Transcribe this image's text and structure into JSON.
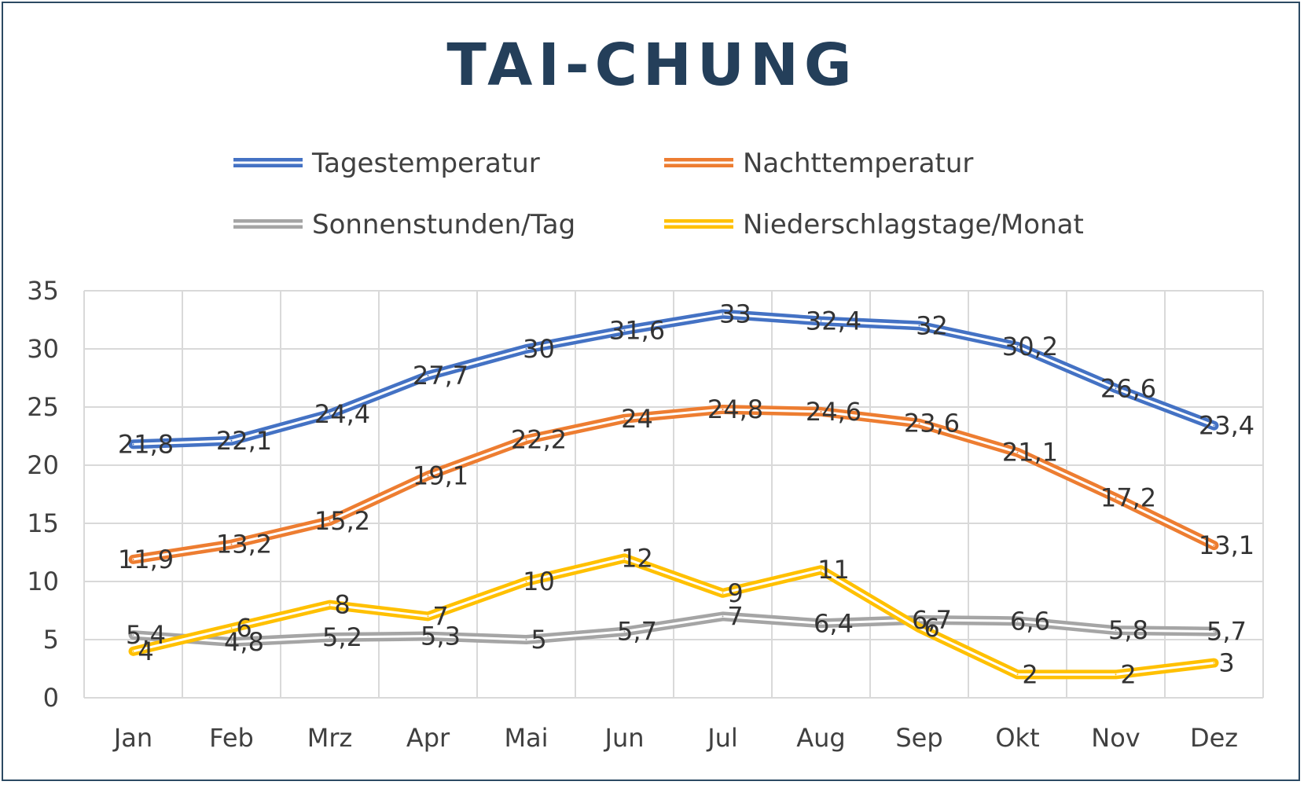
{
  "chart_data": {
    "type": "line",
    "title": "TAI-CHUNG",
    "categories": [
      "Jan",
      "Feb",
      "Mrz",
      "Apr",
      "Mai",
      "Jun",
      "Jul",
      "Aug",
      "Sep",
      "Okt",
      "Nov",
      "Dez"
    ],
    "ylim": [
      0,
      35
    ],
    "yticks": [
      "0",
      "5",
      "10",
      "15",
      "20",
      "25",
      "30",
      "35"
    ],
    "grid": true,
    "legend_position": "top",
    "series": [
      {
        "name": "Tagestemperatur",
        "color": "#4472c4",
        "values": [
          21.8,
          22.1,
          24.4,
          27.7,
          30,
          31.6,
          33,
          32.4,
          32,
          30.2,
          26.6,
          23.4
        ],
        "labels": [
          "21,8",
          "22,1",
          "24,4",
          "27,7",
          "30",
          "31,6",
          "33",
          "32,4",
          "32",
          "30,2",
          "26,6",
          "23,4"
        ]
      },
      {
        "name": "Nachttemperatur",
        "color": "#ed7d31",
        "values": [
          11.9,
          13.2,
          15.2,
          19.1,
          22.2,
          24,
          24.8,
          24.6,
          23.6,
          21.1,
          17.2,
          13.1
        ],
        "labels": [
          "11,9",
          "13,2",
          "15,2",
          "19,1",
          "22,2",
          "24",
          "24,8",
          "24,6",
          "23,6",
          "21,1",
          "17,2",
          "13,1"
        ]
      },
      {
        "name": "Sonnenstunden/Tag",
        "color": "#a5a5a5",
        "values": [
          5.4,
          4.8,
          5.2,
          5.3,
          5,
          5.7,
          7,
          6.4,
          6.7,
          6.6,
          5.8,
          5.7
        ],
        "labels": [
          "5,4",
          "4,8",
          "5,2",
          "5,3",
          "5",
          "5,7",
          "7",
          "6,4",
          "6,7",
          "6,6",
          "5,8",
          "5,7"
        ]
      },
      {
        "name": "Niederschlagstage/Monat",
        "color": "#ffc000",
        "values": [
          4,
          6,
          8,
          7,
          10,
          12,
          9,
          11,
          6,
          2,
          2,
          3
        ],
        "labels": [
          "4",
          "6",
          "8",
          "7",
          "10",
          "12",
          "9",
          "11",
          "6",
          "2",
          "2",
          "3"
        ]
      }
    ]
  }
}
